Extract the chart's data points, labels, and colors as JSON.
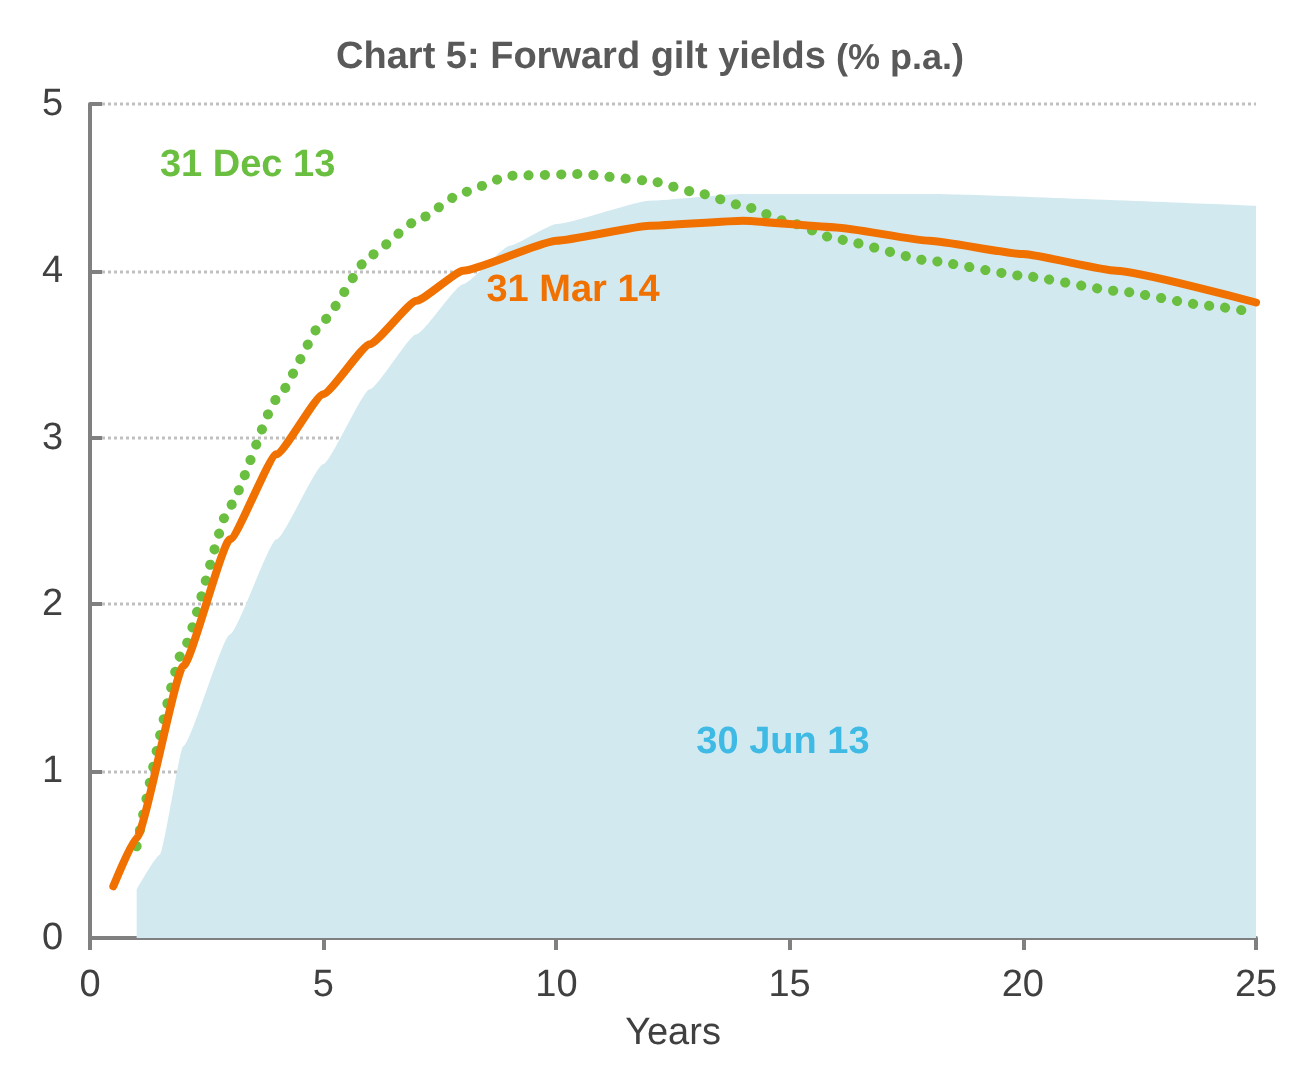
{
  "chart_data": {
    "type": "line",
    "title": "Chart 5: Forward gilt yields",
    "subtitle": "(% p.a.)",
    "xlabel": "Years",
    "xlim": [
      0,
      25
    ],
    "xticks": [
      0,
      5,
      10,
      15,
      20,
      25
    ],
    "ylim": [
      0,
      5
    ],
    "yticks": [
      0,
      1,
      2,
      3,
      4,
      5
    ],
    "grid": "y",
    "legend": false,
    "marker": "none",
    "series": [
      {
        "name": "30 Jun 13",
        "type": "area",
        "color": "#d2e9f0",
        "x": [
          1,
          1.5,
          2,
          3,
          4,
          5,
          6,
          7,
          8,
          9,
          10,
          12,
          14,
          18,
          25
        ],
        "values": [
          0.29,
          0.5,
          1.15,
          1.82,
          2.39,
          2.84,
          3.29,
          3.62,
          3.92,
          4.15,
          4.28,
          4.42,
          4.46,
          4.46,
          4.39
        ]
      },
      {
        "name": "31 Dec 13",
        "color": "#6abf40",
        "line_style": "dotted",
        "x": [
          1,
          2,
          3,
          4,
          5,
          6,
          7,
          8,
          9,
          10.5,
          12,
          13,
          14,
          15,
          16,
          18,
          20,
          22,
          24,
          25
        ],
        "values": [
          0.55,
          1.73,
          2.59,
          3.23,
          3.7,
          4.09,
          4.3,
          4.47,
          4.57,
          4.58,
          4.54,
          4.47,
          4.39,
          4.29,
          4.19,
          4.06,
          3.97,
          3.88,
          3.79,
          3.75
        ]
      },
      {
        "name": "31 Mar 14",
        "color": "#f07000",
        "line_style": "solid",
        "x": [
          0.5,
          1,
          2,
          3,
          4,
          5,
          6,
          7,
          8,
          10,
          12,
          14,
          16,
          18,
          20,
          22,
          25
        ],
        "values": [
          0.31,
          0.6,
          1.63,
          2.39,
          2.9,
          3.26,
          3.56,
          3.82,
          4.0,
          4.18,
          4.27,
          4.3,
          4.26,
          4.18,
          4.1,
          4.0,
          3.81
        ]
      }
    ]
  }
}
